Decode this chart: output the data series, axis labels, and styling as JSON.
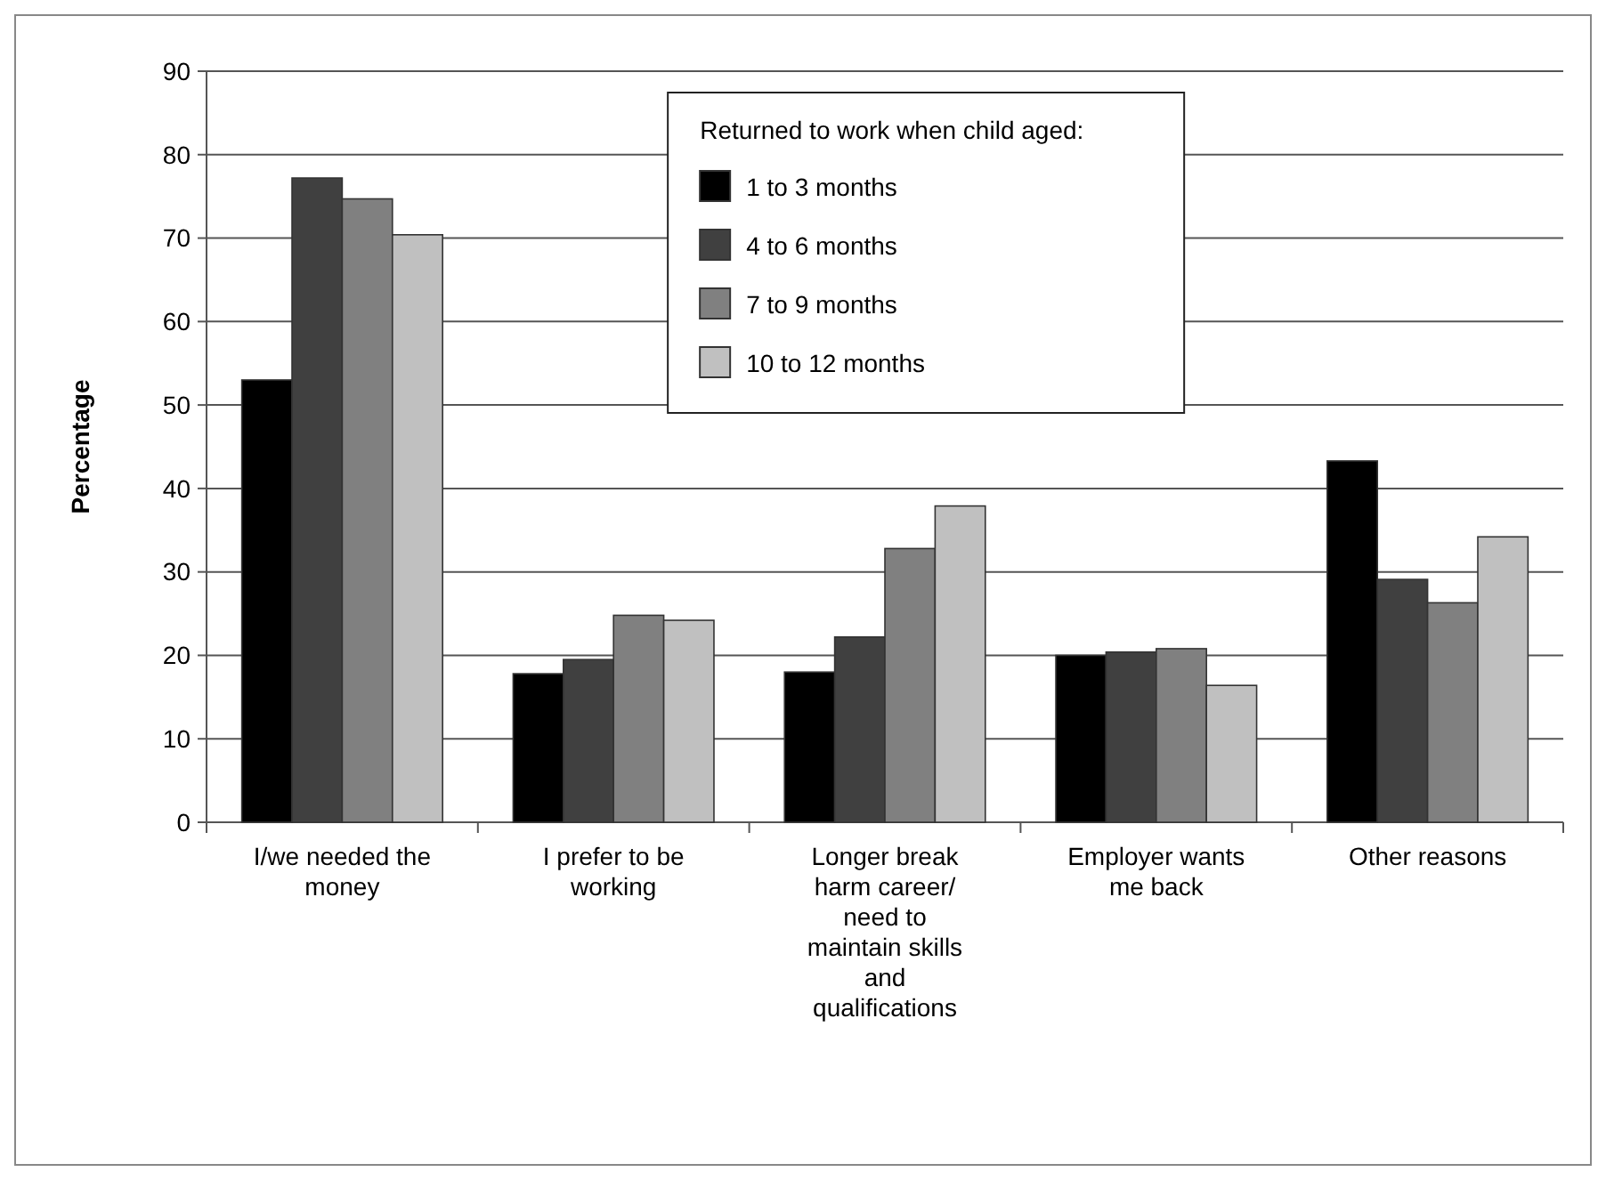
{
  "chart_data": {
    "type": "bar",
    "ylabel": "Percentage",
    "legend_title": "Returned to work when child aged:",
    "categories": [
      "I/we needed the money",
      "I prefer to be working",
      "Longer break harm career/ need to maintain skills and qualifications",
      "Employer wants me back",
      "Other reasons"
    ],
    "series": [
      {
        "name": "1 to 3 months",
        "color": "#000000",
        "values": [
          53,
          17.8,
          18,
          20,
          43.3
        ]
      },
      {
        "name": "4 to 6 months",
        "color": "#404040",
        "values": [
          77.2,
          19.5,
          22.2,
          20.4,
          29.1
        ]
      },
      {
        "name": "7 to 9 months",
        "color": "#808080",
        "values": [
          74.7,
          24.8,
          32.8,
          20.8,
          26.3
        ]
      },
      {
        "name": "10 to 12 months",
        "color": "#c0c0c0",
        "values": [
          70.4,
          24.2,
          37.9,
          16.4,
          34.2
        ]
      }
    ],
    "ylim": [
      0,
      90
    ],
    "yticks": [
      0,
      10,
      20,
      30,
      40,
      50,
      60,
      70,
      80,
      90
    ],
    "grid": "y",
    "legend": "top"
  }
}
